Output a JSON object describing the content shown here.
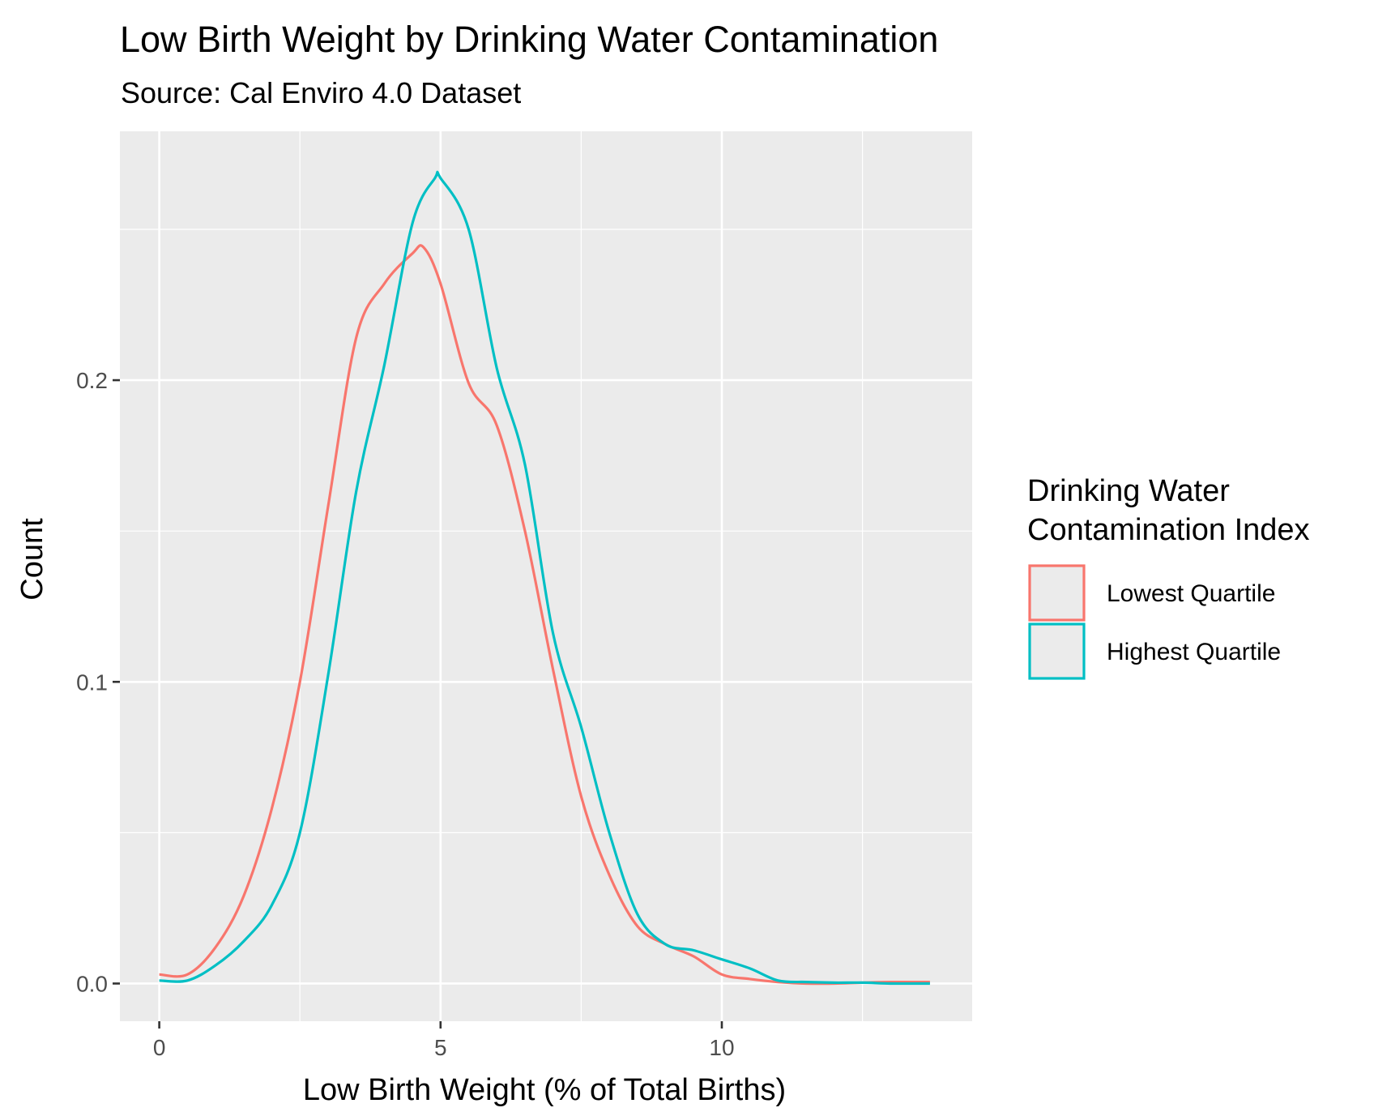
{
  "chart_data": {
    "type": "line",
    "title": "Low Birth Weight by  Drinking Water Contamination",
    "subtitle": "Source: Cal Enviro 4.0 Dataset",
    "xlabel": "Low Birth Weight (% of Total Births)",
    "ylabel": "Count",
    "xlim": [
      -0.7,
      14.45
    ],
    "ylim": [
      -0.0125,
      0.2825
    ],
    "x_ticks": [
      0,
      5,
      10
    ],
    "x_tick_labels": [
      "0",
      "5",
      "10"
    ],
    "y_ticks": [
      0.0,
      0.1,
      0.2
    ],
    "y_tick_labels": [
      "0.0",
      "0.1",
      "0.2"
    ],
    "x_minor_grid": [
      2.5,
      7.5,
      12.5
    ],
    "y_minor_grid": [
      0.05,
      0.15,
      0.25
    ],
    "grid": true,
    "panel_background": "#ebebeb",
    "legend": {
      "title_lines": [
        "Drinking Water",
        "Contamination Index"
      ],
      "position": "right"
    },
    "series": [
      {
        "name": "Lowest Quartile",
        "color": "#f8766d",
        "x": [
          0,
          0.5,
          1,
          1.5,
          2,
          2.5,
          3,
          3.5,
          4,
          4.5,
          4.7,
          5,
          5.5,
          6,
          6.5,
          7,
          7.5,
          8,
          8.5,
          9,
          9.5,
          10,
          10.5,
          11,
          11.5,
          12,
          12.5,
          13,
          13.7
        ],
        "values": [
          0.003,
          0.003,
          0.012,
          0.029,
          0.058,
          0.1,
          0.158,
          0.214,
          0.232,
          0.242,
          0.244,
          0.232,
          0.199,
          0.185,
          0.15,
          0.104,
          0.062,
          0.036,
          0.019,
          0.013,
          0.009,
          0.003,
          0.0015,
          0.0005,
          0.0,
          0.0,
          0.0003,
          0.0005,
          0.0005
        ]
      },
      {
        "name": "Highest Quartile",
        "color": "#00bfc4",
        "x": [
          0,
          0.5,
          1,
          1.5,
          2,
          2.5,
          3,
          3.5,
          4,
          4.5,
          4.9,
          5,
          5.5,
          6,
          6.5,
          7,
          7.5,
          8,
          8.5,
          9,
          9.5,
          10,
          10.5,
          11,
          11.5,
          12,
          12.5,
          13,
          13.7
        ],
        "values": [
          0.001,
          0.001,
          0.006,
          0.014,
          0.026,
          0.05,
          0.102,
          0.163,
          0.205,
          0.252,
          0.267,
          0.267,
          0.25,
          0.204,
          0.172,
          0.116,
          0.085,
          0.05,
          0.023,
          0.013,
          0.011,
          0.008,
          0.005,
          0.001,
          0.0005,
          0.0003,
          0.0003,
          0.0,
          0.0
        ]
      }
    ]
  }
}
